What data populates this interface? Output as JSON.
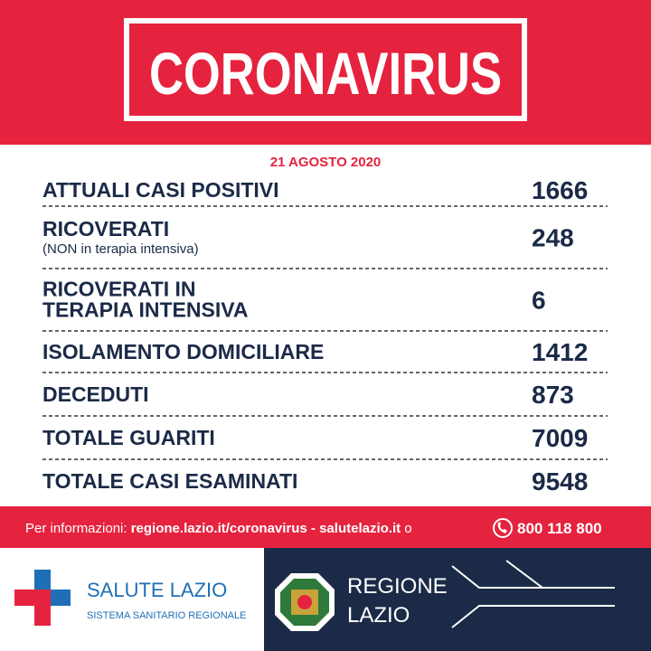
{
  "header": {
    "title": "CORONAVIRUS",
    "date": "21 AGOSTO 2020"
  },
  "table": {
    "rows": [
      {
        "label": [
          "ATTUALI CASI POSITIVI"
        ],
        "value": 1666
      },
      {
        "label": [
          "RICOVERATI"
        ],
        "note": "(NON in terapia intensiva)",
        "value": 248
      },
      {
        "label": [
          "RICOVERATI IN",
          "TERAPIA INTENSIVA"
        ],
        "value": 6
      },
      {
        "label": [
          "ISOLAMENTO DOMICILIARE"
        ],
        "value": 1412
      },
      {
        "label": [
          "DECEDUTI"
        ],
        "value": 873
      },
      {
        "label": [
          "TOTALE GUARITI"
        ],
        "value": 7009
      },
      {
        "label": [
          "TOTALE CASI ESAMINATI"
        ],
        "value": 9548
      }
    ]
  },
  "footer": {
    "info_label": "Per informazioni:",
    "links": "regione.lazio.it/coronavirus - salutelazio.it",
    "conjunction": "o",
    "phone": "800 118 800"
  },
  "logos": {
    "left": {
      "name": "SALUTE LAZIO",
      "subtitle": "SISTEMA SANITARIO REGIONALE"
    },
    "right": {
      "name": [
        "REGIONE",
        "LAZIO"
      ]
    }
  }
}
